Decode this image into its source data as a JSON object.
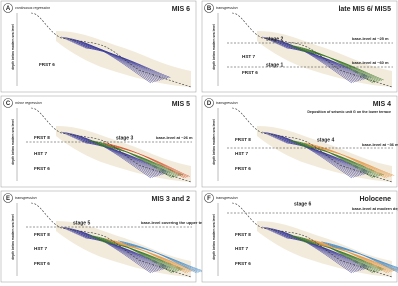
{
  "axis_label": "depth below modern sea level",
  "panels": [
    {
      "letter": "A",
      "note": "continuous regression",
      "title": "MIS 6",
      "units": [
        "FRST 6"
      ],
      "stages": [],
      "baselevels": []
    },
    {
      "letter": "B",
      "note": "transgression",
      "title": "late MIS 6/ MIS5",
      "units": [
        "HST 7",
        "FRST 6"
      ],
      "stages": [
        "stage 2",
        "stage 1"
      ],
      "baselevels": [
        "base-level at ~25 m",
        "base-level at ~60 m"
      ]
    },
    {
      "letter": "C",
      "note": "minor regression",
      "title": "MIS 5",
      "units": [
        "FRST 8",
        "HST 7",
        "FRST 6"
      ],
      "stages": [
        "stage 3"
      ],
      "baselevels": [
        "base-level at ~26 m"
      ]
    },
    {
      "letter": "D",
      "note": "transgression",
      "title": "MIS 4",
      "caption": "Deposition of seismic unit G on the lower terrace",
      "units": [
        "FRST 8",
        "HST 7",
        "FRST 6"
      ],
      "stages": [
        "stage 4"
      ],
      "baselevels": [
        "base-level at ~36 m or less"
      ]
    },
    {
      "letter": "E",
      "note": "transgression",
      "title": "MIS 3 and 2",
      "units": [
        "FRST 8",
        "HST 7",
        "FRST 6"
      ],
      "stages": [
        "stage 5"
      ],
      "baselevels": [
        "base-level covering the upper terrace"
      ]
    },
    {
      "letter": "F",
      "note": "transgression",
      "title": "Holocene",
      "units": [
        "FRST 8",
        "HST 7",
        "FRST 6"
      ],
      "stages": [
        "stage 6"
      ],
      "baselevels": [
        "base-level at modern depth"
      ]
    }
  ]
}
